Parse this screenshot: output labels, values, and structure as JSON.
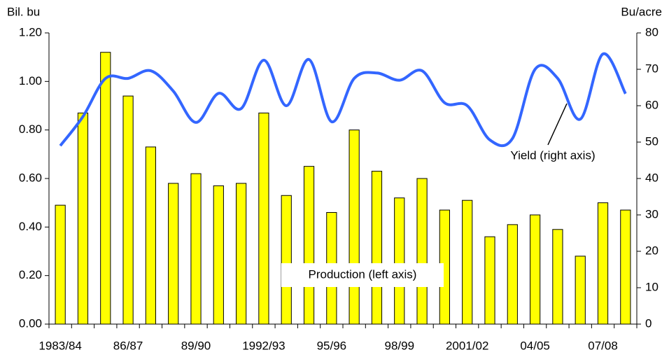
{
  "chart_data": {
    "type": "bar-line",
    "ylabel": "Bil. bu",
    "y2label": "Bu/acre",
    "categories": [
      "1983/84",
      null,
      null,
      "86/87",
      null,
      null,
      "89/90",
      null,
      null,
      "1992/93",
      null,
      null,
      "95/96",
      null,
      null,
      "98/99",
      null,
      null,
      "2001/02",
      null,
      null,
      "04/05",
      null,
      null,
      "07/08",
      null
    ],
    "series": [
      {
        "name": "Production (left axis)",
        "type": "bar",
        "color": "#ffff00",
        "values": [
          0.49,
          0.87,
          1.12,
          0.94,
          0.73,
          0.58,
          0.62,
          0.57,
          0.58,
          0.87,
          0.53,
          0.65,
          0.46,
          0.8,
          0.63,
          0.52,
          0.6,
          0.47,
          0.51,
          0.36,
          0.41,
          0.45,
          0.39,
          0.28,
          0.5,
          0.47
        ]
      },
      {
        "name": "Yield (right axis)",
        "type": "line",
        "axis": "y2",
        "color": "#3366ff",
        "values": [
          49,
          57,
          67.5,
          67.5,
          69.6,
          64,
          55.4,
          63.4,
          59.2,
          72.5,
          60,
          72.7,
          55.6,
          67.5,
          69,
          67,
          69.6,
          60.8,
          60,
          50.6,
          51,
          70,
          67.5,
          56.3,
          74.2,
          63.3
        ]
      }
    ],
    "ylim": [
      0,
      1.2
    ],
    "yticks": [
      {
        "value": 0,
        "label": "0.00"
      },
      {
        "value": 0.2,
        "label": "0.20"
      },
      {
        "value": 0.4,
        "label": "0.40"
      },
      {
        "value": 0.6,
        "label": "0.60"
      },
      {
        "value": 0.8,
        "label": "0.80"
      },
      {
        "value": 1,
        "label": "1.00"
      },
      {
        "value": 1.2,
        "label": "1.20"
      }
    ],
    "y2lim": [
      0,
      80
    ],
    "y2ticks": [
      0,
      10,
      20,
      30,
      40,
      50,
      60,
      70,
      80
    ]
  }
}
